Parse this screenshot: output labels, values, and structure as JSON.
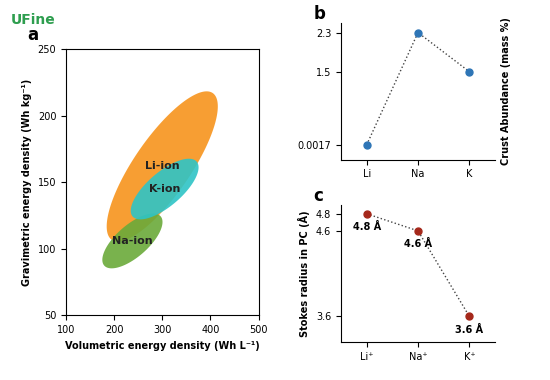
{
  "logo": "UFine",
  "chart_data": [
    {
      "type": "ellipse",
      "title": "a",
      "x_label": "Volumetric energy density (Wh L⁻¹)",
      "y_label": "Gravimetric energy density (Wh kg⁻¹)",
      "xlim": [
        100,
        500
      ],
      "xticks": [
        100,
        200,
        300,
        400,
        500
      ],
      "ylim": [
        50,
        250
      ],
      "yticks": [
        50,
        100,
        150,
        200,
        250
      ],
      "series": [
        {
          "name": "Li-ion",
          "color": "#f7941d",
          "center": [
            300,
            162
          ],
          "axis1": [
            112,
            52
          ],
          "axis2": [
            -28,
            22
          ]
        },
        {
          "name": "Na-ion",
          "color": "#6aaa3a",
          "center": [
            238,
            106
          ],
          "axis1": [
            62,
            16
          ],
          "axis2": [
            -8,
            13
          ]
        },
        {
          "name": "K-ion",
          "color": "#2ec4c6",
          "center": [
            305,
            145
          ],
          "axis1": [
            70,
            18
          ],
          "axis2": [
            -8,
            14
          ]
        }
      ]
    },
    {
      "type": "line",
      "title": "b",
      "y_label": "Crust Abundance (mass %)",
      "categories": [
        "Li",
        "Na",
        "K"
      ],
      "values": [
        0.0017,
        2.3,
        1.5
      ],
      "ylim": [
        -0.3,
        2.5
      ],
      "yticks": [
        0.0017,
        1.5,
        2.3
      ],
      "color": "#2e75b6",
      "marker": "circle",
      "line_style": "dotted"
    },
    {
      "type": "line",
      "title": "c",
      "y_label": "Stokes radius in PC (Å)",
      "categories": [
        "Li⁺",
        "Na⁺",
        "K⁺"
      ],
      "values": [
        4.8,
        4.6,
        3.6
      ],
      "value_labels": [
        "4.8 Å",
        "4.6 Å",
        "3.6 Å"
      ],
      "data_labels": true,
      "ylim": [
        3.3,
        4.9
      ],
      "yticks": [
        3.6,
        4.6,
        4.8
      ],
      "color": "#a5281b",
      "marker": "circle",
      "line_style": "dotted"
    }
  ]
}
